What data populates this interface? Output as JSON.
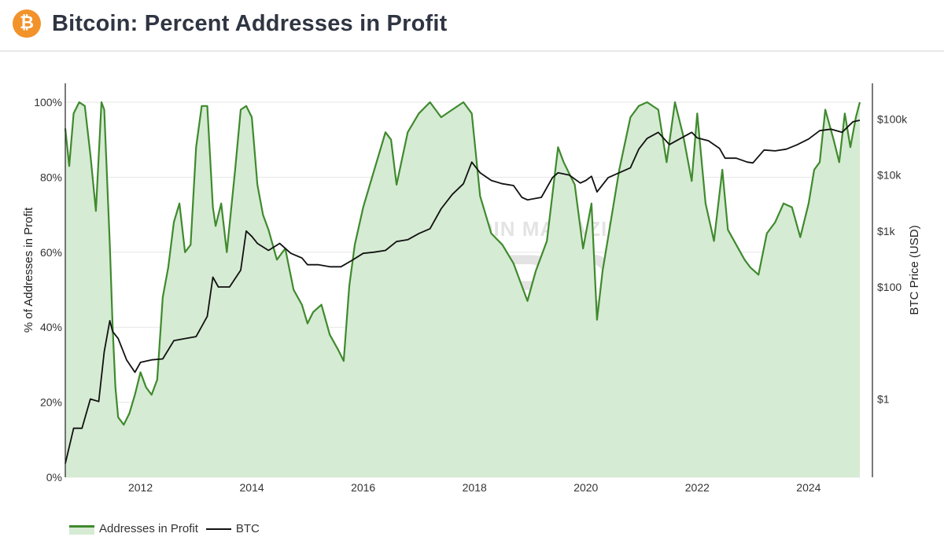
{
  "header": {
    "title": "Bitcoin: Percent Addresses in Profit",
    "logo_symbol": "₿",
    "logo_color": "#f2922a"
  },
  "watermark": {
    "line1": "BITCOIN MAGAZINE",
    "line2": "PRO"
  },
  "legend": {
    "items": [
      {
        "label": "Addresses in Profit"
      },
      {
        "label": "BTC"
      }
    ]
  },
  "colors": {
    "profit_line": "#3f8a2e",
    "profit_fill": "#d6ebd3",
    "btc_line": "#111111",
    "grid": "#e6e6e6"
  },
  "chart_data": {
    "type": "area",
    "title": "Bitcoin: Percent Addresses in Profit",
    "xlabel": "",
    "ylabel": "% of Addresses in Profit",
    "y2label": "BTC Price (USD)",
    "xlim": [
      2010.65,
      2024.92
    ],
    "ylim": [
      0,
      100
    ],
    "y2_scale": "log",
    "y2lim": [
      0.04,
      200000
    ],
    "x_ticks": [
      2012,
      2014,
      2016,
      2018,
      2020,
      2022,
      2024
    ],
    "x_tick_labels": [
      "2012",
      "2014",
      "2016",
      "2018",
      "2020",
      "2022",
      "2024"
    ],
    "y_ticks": [
      0,
      20,
      40,
      60,
      80,
      100
    ],
    "y_tick_labels": [
      "0%",
      "20%",
      "40%",
      "60%",
      "80%",
      "100%"
    ],
    "y2_ticks": [
      1,
      100,
      1000,
      10000,
      100000
    ],
    "y2_tick_labels": [
      "$1",
      "$100",
      "$1k",
      "$10k",
      "$100k"
    ],
    "grid": true,
    "legend_position": "bottom-left",
    "series": [
      {
        "name": "Addresses in Profit",
        "type": "area",
        "axis": "left",
        "x": [
          2010.65,
          2010.72,
          2010.8,
          2010.9,
          2011.0,
          2011.1,
          2011.2,
          2011.3,
          2011.35,
          2011.45,
          2011.5,
          2011.55,
          2011.6,
          2011.7,
          2011.8,
          2011.9,
          2012.0,
          2012.1,
          2012.2,
          2012.3,
          2012.4,
          2012.5,
          2012.6,
          2012.7,
          2012.8,
          2012.9,
          2013.0,
          2013.1,
          2013.2,
          2013.3,
          2013.35,
          2013.45,
          2013.55,
          2013.7,
          2013.8,
          2013.9,
          2014.0,
          2014.1,
          2014.2,
          2014.3,
          2014.45,
          2014.6,
          2014.75,
          2014.9,
          2015.0,
          2015.1,
          2015.25,
          2015.4,
          2015.55,
          2015.65,
          2015.75,
          2015.85,
          2016.0,
          2016.2,
          2016.4,
          2016.5,
          2016.6,
          2016.8,
          2017.0,
          2017.2,
          2017.4,
          2017.6,
          2017.8,
          2017.95,
          2018.1,
          2018.3,
          2018.5,
          2018.7,
          2018.85,
          2018.95,
          2019.1,
          2019.3,
          2019.5,
          2019.6,
          2019.8,
          2019.95,
          2020.1,
          2020.2,
          2020.3,
          2020.4,
          2020.6,
          2020.8,
          2020.95,
          2021.1,
          2021.3,
          2021.45,
          2021.6,
          2021.75,
          2021.9,
          2022.0,
          2022.15,
          2022.3,
          2022.45,
          2022.55,
          2022.7,
          2022.85,
          2022.95,
          2023.1,
          2023.25,
          2023.4,
          2023.55,
          2023.7,
          2023.85,
          2024.0,
          2024.1,
          2024.2,
          2024.3,
          2024.45,
          2024.55,
          2024.65,
          2024.75,
          2024.85,
          2024.92
        ],
        "values": [
          93,
          83,
          97,
          100,
          99,
          86,
          71,
          100,
          98,
          62,
          40,
          24,
          16,
          14,
          17,
          22,
          28,
          24,
          22,
          26,
          48,
          56,
          68,
          73,
          60,
          62,
          88,
          99,
          99,
          72,
          67,
          73,
          60,
          82,
          98,
          99,
          96,
          78,
          70,
          66,
          58,
          61,
          50,
          46,
          41,
          44,
          46,
          38,
          34,
          31,
          51,
          62,
          72,
          82,
          92,
          90,
          78,
          92,
          97,
          100,
          96,
          98,
          100,
          97,
          75,
          65,
          62,
          57,
          51,
          47,
          55,
          63,
          88,
          84,
          78,
          61,
          73,
          42,
          55,
          64,
          82,
          96,
          99,
          100,
          98,
          84,
          100,
          91,
          79,
          97,
          73,
          63,
          82,
          66,
          62,
          58,
          56,
          54,
          65,
          68,
          73,
          72,
          64,
          73,
          82,
          84,
          98,
          90,
          84,
          97,
          88,
          96,
          100
        ],
        "color": "#3f8a2e"
      },
      {
        "name": "BTC",
        "type": "line",
        "axis": "right",
        "x": [
          2010.65,
          2010.8,
          2010.95,
          2011.1,
          2011.25,
          2011.35,
          2011.45,
          2011.5,
          2011.6,
          2011.75,
          2011.9,
          2012.0,
          2012.2,
          2012.4,
          2012.6,
          2012.8,
          2013.0,
          2013.2,
          2013.3,
          2013.4,
          2013.6,
          2013.8,
          2013.9,
          2014.0,
          2014.1,
          2014.3,
          2014.5,
          2014.7,
          2014.9,
          2015.0,
          2015.2,
          2015.4,
          2015.6,
          2015.8,
          2016.0,
          2016.2,
          2016.4,
          2016.6,
          2016.8,
          2017.0,
          2017.2,
          2017.4,
          2017.6,
          2017.8,
          2017.95,
          2018.1,
          2018.3,
          2018.5,
          2018.7,
          2018.85,
          2018.95,
          2019.2,
          2019.4,
          2019.5,
          2019.7,
          2019.9,
          2020.0,
          2020.1,
          2020.2,
          2020.4,
          2020.6,
          2020.8,
          2020.95,
          2021.1,
          2021.3,
          2021.5,
          2021.7,
          2021.9,
          2022.0,
          2022.2,
          2022.4,
          2022.5,
          2022.7,
          2022.9,
          2023.0,
          2023.2,
          2023.4,
          2023.6,
          2023.8,
          2024.0,
          2024.2,
          2024.4,
          2024.6,
          2024.8,
          2024.92
        ],
        "values": [
          0.07,
          0.3,
          0.3,
          1.0,
          0.9,
          7,
          25,
          16,
          12,
          5,
          3,
          4.5,
          5,
          5.2,
          11,
          12,
          13,
          30,
          150,
          100,
          100,
          200,
          1000,
          800,
          600,
          450,
          600,
          400,
          330,
          250,
          250,
          230,
          230,
          300,
          400,
          420,
          450,
          650,
          700,
          900,
          1100,
          2500,
          4500,
          7000,
          17000,
          11000,
          8000,
          7000,
          6500,
          4000,
          3600,
          4000,
          9000,
          11000,
          10000,
          7200,
          8000,
          9500,
          5000,
          9000,
          11000,
          13500,
          29000,
          45000,
          58000,
          35000,
          45000,
          58000,
          46000,
          41000,
          30000,
          20000,
          20000,
          17000,
          16500,
          28000,
          27000,
          29000,
          35000,
          44000,
          62000,
          66000,
          58000,
          90000,
          95000
        ],
        "color": "#111111"
      }
    ]
  }
}
